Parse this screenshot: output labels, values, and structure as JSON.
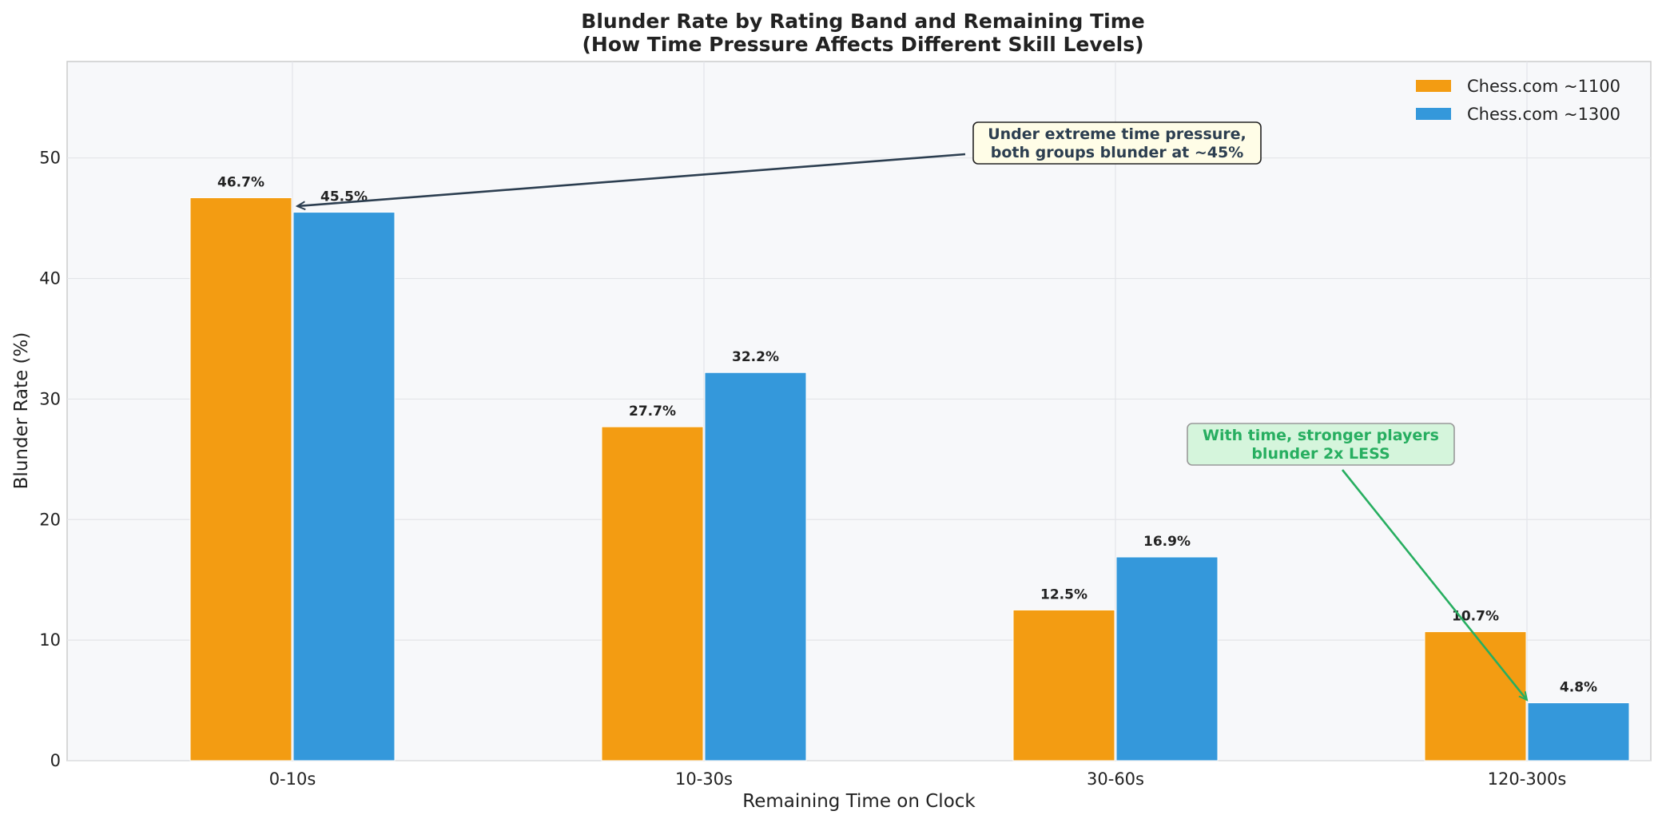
{
  "chart_data": {
    "type": "bar",
    "title": "Blunder Rate by Rating Band and Remaining Time",
    "subtitle": "(How Time Pressure Affects Different Skill Levels)",
    "xlabel": "Remaining Time on Clock",
    "ylabel": "Blunder Rate (%)",
    "ylim": [
      0,
      58
    ],
    "yticks": [
      0,
      10,
      20,
      30,
      40,
      50
    ],
    "grid": true,
    "legend_position": "top-right",
    "categories": [
      "0-10s",
      "10-30s",
      "30-60s",
      "120-300s"
    ],
    "series": [
      {
        "name": "Chess.com ~1100",
        "color": "#f39c12",
        "values": [
          46.7,
          27.7,
          12.5,
          10.7
        ],
        "labels": [
          "46.7%",
          "27.7%",
          "12.5%",
          "10.7%"
        ]
      },
      {
        "name": "Chess.com ~1300",
        "color": "#3498db",
        "values": [
          45.5,
          32.2,
          16.9,
          4.8
        ],
        "labels": [
          "45.5%",
          "32.2%",
          "16.9%",
          "4.8%"
        ]
      }
    ],
    "annotations": [
      {
        "lines": [
          "Under extreme time pressure,",
          "both groups blunder at ~45%"
        ],
        "text_color": "#2c3e50",
        "box_fill": "#fffde7",
        "box_stroke": "#222222",
        "arrow_color": "#2c3e50",
        "target": {
          "category": "0-10s",
          "y": 46.0
        },
        "text_anchor": {
          "category_position": 2.06,
          "y": 51.5
        }
      },
      {
        "lines": [
          "With time, stronger players",
          "blunder 2x LESS"
        ],
        "text_color": "#27ae60",
        "box_fill": "#d5f5dc",
        "box_stroke": "#999999",
        "arrow_color": "#27ae60",
        "target": {
          "category": "120-300s",
          "y": 5.0
        },
        "text_anchor": {
          "category_position": 2.5,
          "y": 26.3
        }
      }
    ]
  }
}
